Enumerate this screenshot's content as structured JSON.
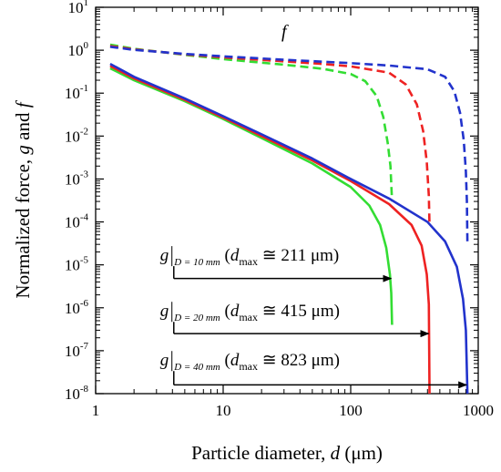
{
  "chart_data": {
    "type": "line",
    "title": "",
    "xlabel": {
      "prefix": "Particle diameter, ",
      "var": "d",
      "unit": " (μm)"
    },
    "ylabel": {
      "prefix": "Normalized force, ",
      "var1": "g",
      "mid": " and ",
      "var2": "f"
    },
    "x_scale": "log",
    "y_scale": "log",
    "xlim": [
      1,
      1000
    ],
    "ylim": [
      1e-08,
      10
    ],
    "x_ticks": [
      {
        "value": 1,
        "label": "1"
      },
      {
        "value": 10,
        "label": "10"
      },
      {
        "value": 100,
        "label": "100"
      },
      {
        "value": 1000,
        "label": "1000"
      }
    ],
    "y_ticks": [
      {
        "value": 10,
        "base": "10",
        "exp": "1"
      },
      {
        "value": 1,
        "base": "10",
        "exp": "0"
      },
      {
        "value": 0.1,
        "base": "10",
        "exp": "-1"
      },
      {
        "value": 0.01,
        "base": "10",
        "exp": "-2"
      },
      {
        "value": 0.001,
        "base": "10",
        "exp": "-3"
      },
      {
        "value": 0.0001,
        "base": "10",
        "exp": "-4"
      },
      {
        "value": 1e-05,
        "base": "10",
        "exp": "-5"
      },
      {
        "value": 1e-06,
        "base": "10",
        "exp": "-6"
      },
      {
        "value": 1e-07,
        "base": "10",
        "exp": "-7"
      },
      {
        "value": 1e-08,
        "base": "10",
        "exp": "-8"
      }
    ],
    "grid": false,
    "series": [
      {
        "id": "f-10",
        "color": "#33dd33",
        "dash": true,
        "points": [
          [
            1.3,
            1.35
          ],
          [
            2,
            1.08
          ],
          [
            5,
            0.78
          ],
          [
            10,
            0.62
          ],
          [
            30,
            0.46
          ],
          [
            60,
            0.37
          ],
          [
            100,
            0.28
          ],
          [
            130,
            0.19
          ],
          [
            160,
            0.085
          ],
          [
            180,
            0.028
          ],
          [
            195,
            0.007
          ],
          [
            205,
            0.002
          ],
          [
            211,
            0.0003
          ]
        ]
      },
      {
        "id": "f-20",
        "color": "#ee2222",
        "dash": true,
        "points": [
          [
            1.3,
            1.25
          ],
          [
            2,
            1.05
          ],
          [
            5,
            0.8
          ],
          [
            10,
            0.68
          ],
          [
            30,
            0.55
          ],
          [
            60,
            0.48
          ],
          [
            100,
            0.42
          ],
          [
            200,
            0.3
          ],
          [
            270,
            0.16
          ],
          [
            330,
            0.055
          ],
          [
            370,
            0.013
          ],
          [
            395,
            0.0025
          ],
          [
            410,
            0.0004
          ],
          [
            415,
            8e-05
          ]
        ]
      },
      {
        "id": "f-40",
        "color": "#2233cc",
        "dash": true,
        "points": [
          [
            1.3,
            1.2
          ],
          [
            2,
            1.02
          ],
          [
            5,
            0.82
          ],
          [
            10,
            0.72
          ],
          [
            30,
            0.6
          ],
          [
            100,
            0.5
          ],
          [
            200,
            0.44
          ],
          [
            400,
            0.36
          ],
          [
            550,
            0.24
          ],
          [
            650,
            0.11
          ],
          [
            720,
            0.035
          ],
          [
            770,
            0.008
          ],
          [
            800,
            0.0015
          ],
          [
            815,
            0.0003
          ],
          [
            823,
            3e-05
          ]
        ]
      },
      {
        "id": "g-10",
        "color": "#33dd33",
        "dash": false,
        "points": [
          [
            1.3,
            0.38
          ],
          [
            2,
            0.2
          ],
          [
            5,
            0.065
          ],
          [
            10,
            0.025
          ],
          [
            20,
            0.009
          ],
          [
            50,
            0.0023
          ],
          [
            100,
            0.00065
          ],
          [
            140,
            0.00024
          ],
          [
            170,
            8.5e-05
          ],
          [
            190,
            2.5e-05
          ],
          [
            203,
            6e-06
          ],
          [
            208,
            2.2e-06
          ],
          [
            211,
            4e-07
          ]
        ]
      },
      {
        "id": "g-20",
        "color": "#ee2222",
        "dash": false,
        "points": [
          [
            1.3,
            0.43
          ],
          [
            2,
            0.22
          ],
          [
            5,
            0.07
          ],
          [
            10,
            0.027
          ],
          [
            20,
            0.01
          ],
          [
            50,
            0.0027
          ],
          [
            100,
            0.0009
          ],
          [
            200,
            0.00026
          ],
          [
            300,
            8.5e-05
          ],
          [
            360,
            2.8e-05
          ],
          [
            395,
            6e-06
          ],
          [
            410,
            1.2e-06
          ],
          [
            415,
            1e-08
          ]
        ]
      },
      {
        "id": "g-40",
        "color": "#2233cc",
        "dash": false,
        "points": [
          [
            1.3,
            0.48
          ],
          [
            2,
            0.24
          ],
          [
            5,
            0.075
          ],
          [
            10,
            0.029
          ],
          [
            20,
            0.011
          ],
          [
            50,
            0.003
          ],
          [
            100,
            0.001
          ],
          [
            200,
            0.00035
          ],
          [
            400,
            0.0001
          ],
          [
            550,
            3.5e-05
          ],
          [
            680,
            9e-06
          ],
          [
            760,
            1.6e-06
          ],
          [
            800,
            3e-07
          ],
          [
            823,
            1e-08
          ]
        ]
      }
    ],
    "annotations": [
      {
        "id": "f-label",
        "text": "f",
        "x": 30,
        "y": 2.0
      },
      {
        "id": "g10",
        "g": "g",
        "sub": "D = 10 mm",
        "d": "d",
        "dsub": "max",
        "rest": " ≅ 211 μm)",
        "x": 3.2,
        "y": 1.25e-05,
        "arrow_from": [
          4.1,
          4.8e-06
        ],
        "arrow_to": [
          211,
          4.8e-06
        ],
        "color": "#33dd33"
      },
      {
        "id": "g20",
        "g": "g",
        "sub": "D = 20 mm",
        "d": "d",
        "dsub": "max",
        "rest": " ≅ 415 μm)",
        "x": 3.2,
        "y": 6.3e-07,
        "arrow_from": [
          4.1,
          2.5e-07
        ],
        "arrow_to": [
          415,
          2.5e-07
        ],
        "color": "#ee2222"
      },
      {
        "id": "g40",
        "g": "g",
        "sub": "D = 40 mm",
        "d": "d",
        "dsub": "max",
        "rest": " ≅ 823 μm)",
        "x": 3.2,
        "y": 4.5e-08,
        "arrow_from": [
          4.1,
          1.6e-08
        ],
        "arrow_to": [
          823,
          1.6e-08
        ],
        "color": "#2233cc"
      }
    ]
  }
}
